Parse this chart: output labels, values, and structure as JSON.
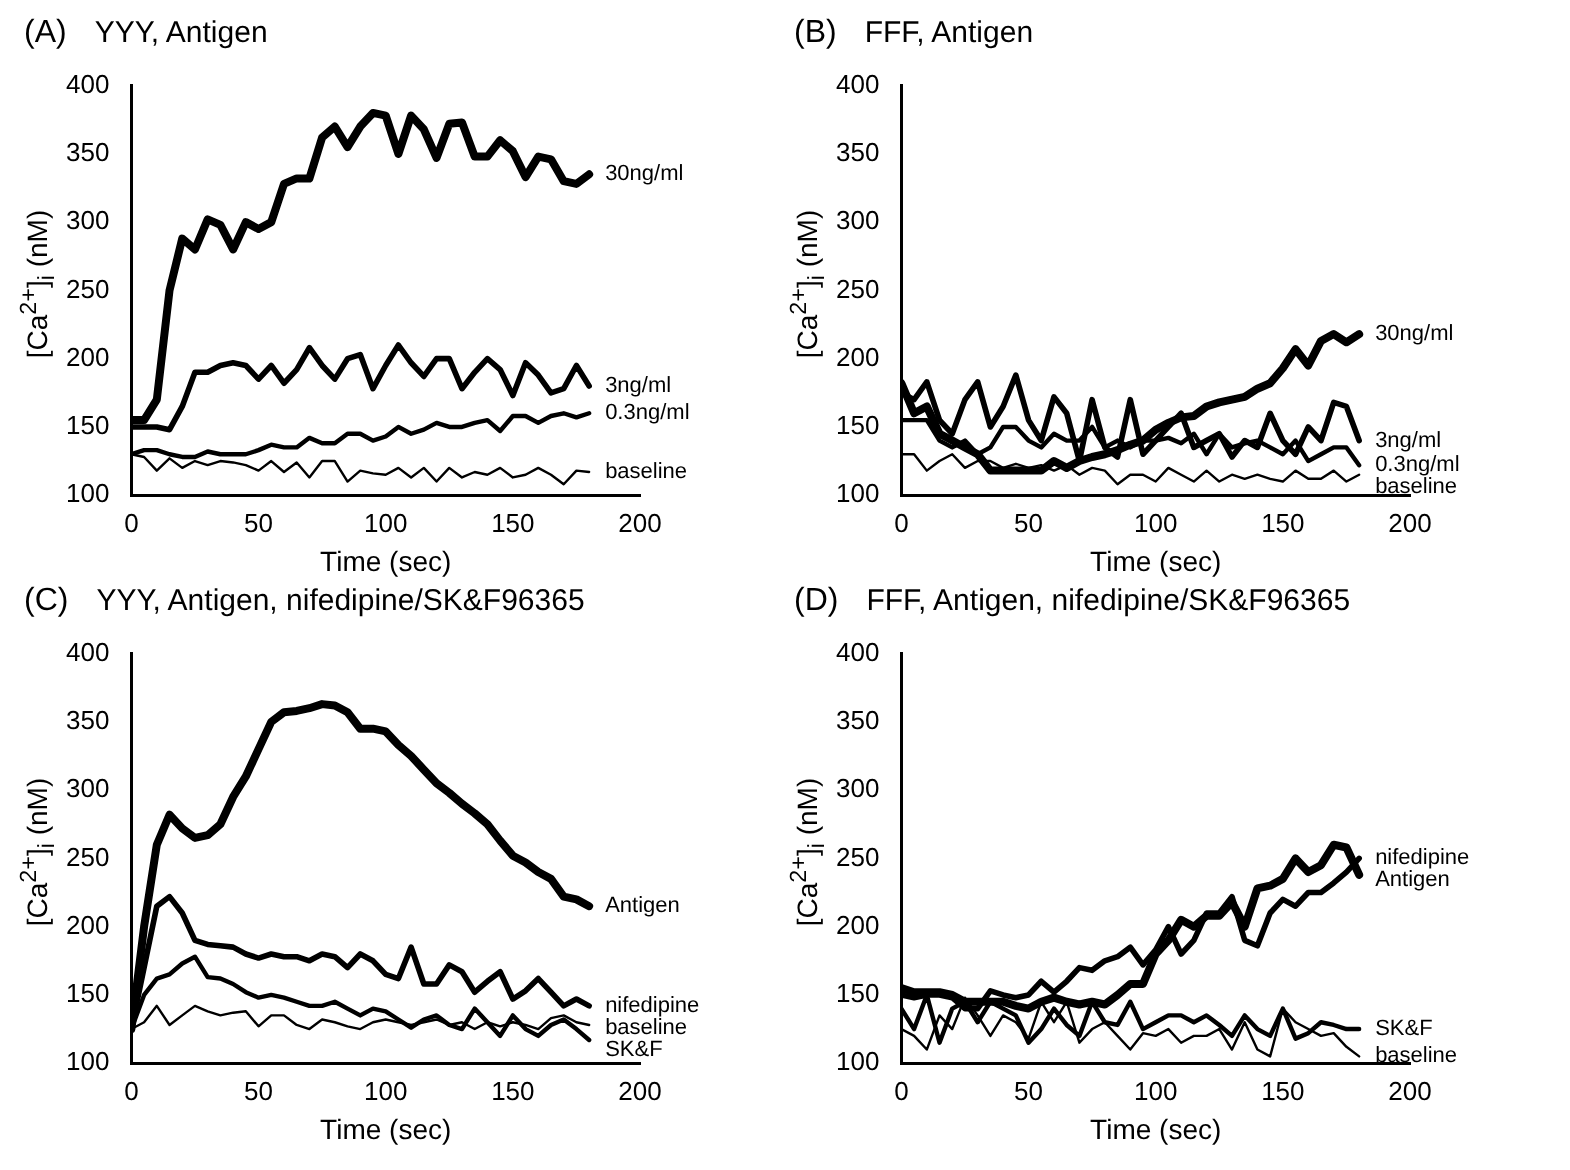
{
  "chart_data": [
    {
      "type": "line",
      "title": "(A)",
      "subtitle": "YYY, Antigen",
      "xlabel": "Time (sec)",
      "ylabel": "[Ca$^{2+}$]$_{i}$ (nM)",
      "marker": "none",
      "xlim": [
        0,
        200
      ],
      "xticks": [
        0,
        50,
        100,
        150,
        200
      ],
      "ylim": [
        100,
        400
      ],
      "yticks": [
        100,
        150,
        200,
        250,
        300,
        350,
        400
      ],
      "x": [
        0,
        5,
        10,
        15,
        20,
        25,
        30,
        35,
        40,
        45,
        50,
        55,
        60,
        65,
        70,
        75,
        80,
        85,
        90,
        95,
        100,
        105,
        110,
        115,
        120,
        125,
        130,
        135,
        140,
        145,
        150,
        155,
        160,
        165,
        170,
        175,
        180
      ],
      "series": [
        {
          "name": "30ng/ml",
          "color": "#000000",
          "values": [
            155,
            155,
            170,
            250,
            288,
            280,
            302,
            298,
            280,
            300,
            295,
            300,
            328,
            332,
            332,
            362,
            370,
            355,
            370,
            380,
            378,
            350,
            378,
            368,
            347,
            372,
            373,
            348,
            348,
            360,
            352,
            333,
            348,
            346,
            330,
            328,
            335
          ]
        },
        {
          "name": "3ng/ml",
          "color": "#000000",
          "values": [
            150,
            150,
            150,
            148,
            165,
            190,
            190,
            195,
            197,
            195,
            185,
            195,
            182,
            192,
            208,
            195,
            185,
            200,
            203,
            178,
            195,
            210,
            197,
            187,
            200,
            200,
            178,
            190,
            200,
            192,
            173,
            197,
            188,
            175,
            178,
            195,
            180
          ]
        },
        {
          "name": "0.3ng/ml",
          "color": "#000000",
          "values": [
            130,
            133,
            133,
            130,
            128,
            128,
            132,
            130,
            130,
            130,
            133,
            137,
            135,
            135,
            142,
            138,
            138,
            145,
            145,
            140,
            143,
            150,
            145,
            148,
            153,
            150,
            150,
            153,
            155,
            147,
            158,
            158,
            153,
            158,
            160,
            157,
            160
          ]
        },
        {
          "name": "baseline",
          "color": "#000000",
          "values": [
            130,
            128,
            118,
            127,
            120,
            125,
            122,
            125,
            124,
            122,
            118,
            125,
            117,
            124,
            113,
            125,
            125,
            110,
            118,
            116,
            115,
            120,
            113,
            120,
            110,
            120,
            113,
            117,
            115,
            120,
            113,
            115,
            120,
            115,
            108,
            118,
            117
          ]
        }
      ]
    },
    {
      "type": "line",
      "title": "(B)",
      "subtitle": "FFF, Antigen",
      "xlabel": "Time (sec)",
      "ylabel": "[Ca$^{2+}$]$_{i}$ (nM)",
      "marker": "none",
      "xlim": [
        0,
        200
      ],
      "xticks": [
        0,
        50,
        100,
        150,
        200
      ],
      "ylim": [
        100,
        400
      ],
      "yticks": [
        100,
        150,
        200,
        250,
        300,
        350,
        400
      ],
      "x": [
        0,
        5,
        10,
        15,
        20,
        25,
        30,
        35,
        40,
        45,
        50,
        55,
        60,
        65,
        70,
        75,
        80,
        85,
        90,
        95,
        100,
        105,
        110,
        115,
        120,
        125,
        130,
        135,
        140,
        145,
        150,
        155,
        160,
        165,
        170,
        175,
        180
      ],
      "series": [
        {
          "name": "30ng/ml",
          "color": "#000000",
          "values": [
            182,
            160,
            165,
            145,
            140,
            135,
            130,
            118,
            118,
            118,
            118,
            118,
            125,
            120,
            125,
            128,
            130,
            133,
            137,
            140,
            148,
            153,
            157,
            158,
            165,
            168,
            170,
            172,
            178,
            182,
            193,
            207,
            195,
            213,
            218,
            212,
            218
          ]
        },
        {
          "name": "3ng/ml",
          "color": "#000000",
          "values": [
            175,
            170,
            183,
            155,
            145,
            170,
            183,
            150,
            165,
            188,
            155,
            140,
            172,
            160,
            125,
            170,
            135,
            128,
            170,
            130,
            140,
            150,
            160,
            135,
            140,
            145,
            128,
            140,
            135,
            160,
            140,
            130,
            150,
            140,
            168,
            165,
            140
          ]
        },
        {
          "name": "0.3ng/ml",
          "color": "#000000",
          "values": [
            155,
            155,
            155,
            140,
            135,
            140,
            130,
            135,
            150,
            150,
            140,
            135,
            145,
            140,
            140,
            150,
            135,
            140,
            135,
            140,
            140,
            142,
            138,
            145,
            130,
            145,
            135,
            138,
            140,
            135,
            130,
            140,
            125,
            130,
            135,
            135,
            122
          ]
        },
        {
          "name": "baseline",
          "color": "#000000",
          "values": [
            130,
            130,
            118,
            125,
            130,
            120,
            125,
            125,
            120,
            123,
            120,
            122,
            118,
            122,
            115,
            120,
            118,
            108,
            115,
            115,
            110,
            120,
            115,
            110,
            118,
            110,
            115,
            112,
            115,
            112,
            110,
            118,
            112,
            112,
            118,
            110,
            115
          ]
        }
      ]
    },
    {
      "type": "line",
      "title": "(C)",
      "subtitle": "YYY, Antigen, nifedipine/SK&F96365",
      "xlabel": "Time (sec)",
      "ylabel": "[Ca$^{2+}$]$_{i}$ (nM)",
      "marker": "none",
      "xlim": [
        0,
        200
      ],
      "xticks": [
        0,
        50,
        100,
        150,
        200
      ],
      "ylim": [
        100,
        400
      ],
      "yticks": [
        100,
        150,
        200,
        250,
        300,
        350,
        400
      ],
      "x": [
        0,
        5,
        10,
        15,
        20,
        25,
        30,
        35,
        40,
        45,
        50,
        55,
        60,
        65,
        70,
        75,
        80,
        85,
        90,
        95,
        100,
        105,
        110,
        115,
        120,
        125,
        130,
        135,
        140,
        145,
        150,
        155,
        160,
        165,
        170,
        175,
        180
      ],
      "series": [
        {
          "name": "Antigen",
          "color": "#000000",
          "values": [
            125,
            200,
            260,
            282,
            272,
            265,
            267,
            275,
            295,
            310,
            330,
            350,
            357,
            358,
            360,
            363,
            362,
            357,
            345,
            345,
            343,
            333,
            325,
            315,
            305,
            298,
            290,
            283,
            275,
            263,
            252,
            247,
            240,
            235,
            222,
            220,
            215
          ]
        },
        {
          "name": "nifedipine",
          "color": "#000000",
          "values": [
            125,
            170,
            215,
            222,
            210,
            190,
            187,
            186,
            185,
            180,
            177,
            180,
            178,
            178,
            175,
            180,
            178,
            170,
            180,
            175,
            165,
            162,
            185,
            158,
            158,
            172,
            167,
            152,
            160,
            167,
            147,
            153,
            162,
            152,
            142,
            147,
            142
          ]
        },
        {
          "name": "SK&F",
          "color": "#000000",
          "values": [
            125,
            150,
            162,
            165,
            173,
            178,
            163,
            162,
            158,
            152,
            148,
            150,
            148,
            145,
            142,
            142,
            145,
            140,
            135,
            140,
            138,
            132,
            126,
            132,
            135,
            128,
            125,
            140,
            130,
            120,
            135,
            125,
            120,
            128,
            132,
            125,
            117
          ]
        },
        {
          "name": "baseline",
          "color": "#000000",
          "values": [
            125,
            130,
            142,
            128,
            135,
            142,
            138,
            135,
            137,
            138,
            127,
            135,
            135,
            128,
            125,
            132,
            130,
            127,
            125,
            130,
            132,
            130,
            128,
            130,
            132,
            128,
            130,
            125,
            130,
            127,
            130,
            128,
            125,
            133,
            135,
            130,
            128
          ]
        }
      ]
    },
    {
      "type": "line",
      "title": "(D)",
      "subtitle": "FFF, Antigen, nifedipine/SK&F96365",
      "xlabel": "Time (sec)",
      "ylabel": "[Ca$^{2+}$]$_{i}$ (nM)",
      "marker": "none",
      "xlim": [
        0,
        200
      ],
      "xticks": [
        0,
        50,
        100,
        150,
        200
      ],
      "ylim": [
        100,
        400
      ],
      "yticks": [
        100,
        150,
        200,
        250,
        300,
        350,
        400
      ],
      "x": [
        0,
        5,
        10,
        15,
        20,
        25,
        30,
        35,
        40,
        45,
        50,
        55,
        60,
        65,
        70,
        75,
        80,
        85,
        90,
        95,
        100,
        105,
        110,
        115,
        120,
        125,
        130,
        135,
        140,
        145,
        150,
        155,
        160,
        165,
        170,
        175,
        180
      ],
      "series": [
        {
          "name": "Antigen",
          "color": "#000000",
          "values": [
            155,
            152,
            152,
            152,
            150,
            145,
            145,
            145,
            145,
            142,
            140,
            145,
            148,
            145,
            143,
            145,
            143,
            150,
            158,
            158,
            180,
            190,
            205,
            200,
            208,
            208,
            218,
            200,
            228,
            230,
            235,
            250,
            240,
            245,
            260,
            258,
            238
          ]
        },
        {
          "name": "nifedipine",
          "color": "#000000",
          "values": [
            150,
            148,
            150,
            150,
            148,
            140,
            140,
            153,
            150,
            148,
            150,
            160,
            152,
            160,
            170,
            168,
            175,
            178,
            185,
            172,
            183,
            200,
            180,
            190,
            210,
            210,
            222,
            190,
            186,
            210,
            220,
            215,
            225,
            225,
            232,
            240,
            250
          ]
        },
        {
          "name": "SK&F",
          "color": "#000000",
          "values": [
            140,
            125,
            150,
            115,
            140,
            145,
            130,
            145,
            140,
            135,
            115,
            125,
            140,
            128,
            120,
            145,
            130,
            128,
            145,
            125,
            130,
            135,
            135,
            130,
            135,
            128,
            120,
            135,
            125,
            120,
            140,
            118,
            122,
            130,
            128,
            125,
            125
          ]
        },
        {
          "name": "baseline",
          "color": "#000000",
          "values": [
            125,
            120,
            110,
            135,
            125,
            148,
            135,
            120,
            135,
            130,
            118,
            145,
            130,
            145,
            115,
            125,
            130,
            120,
            110,
            122,
            120,
            125,
            115,
            120,
            120,
            125,
            110,
            130,
            110,
            105,
            140,
            130,
            125,
            120,
            122,
            112,
            105
          ]
        }
      ]
    }
  ]
}
